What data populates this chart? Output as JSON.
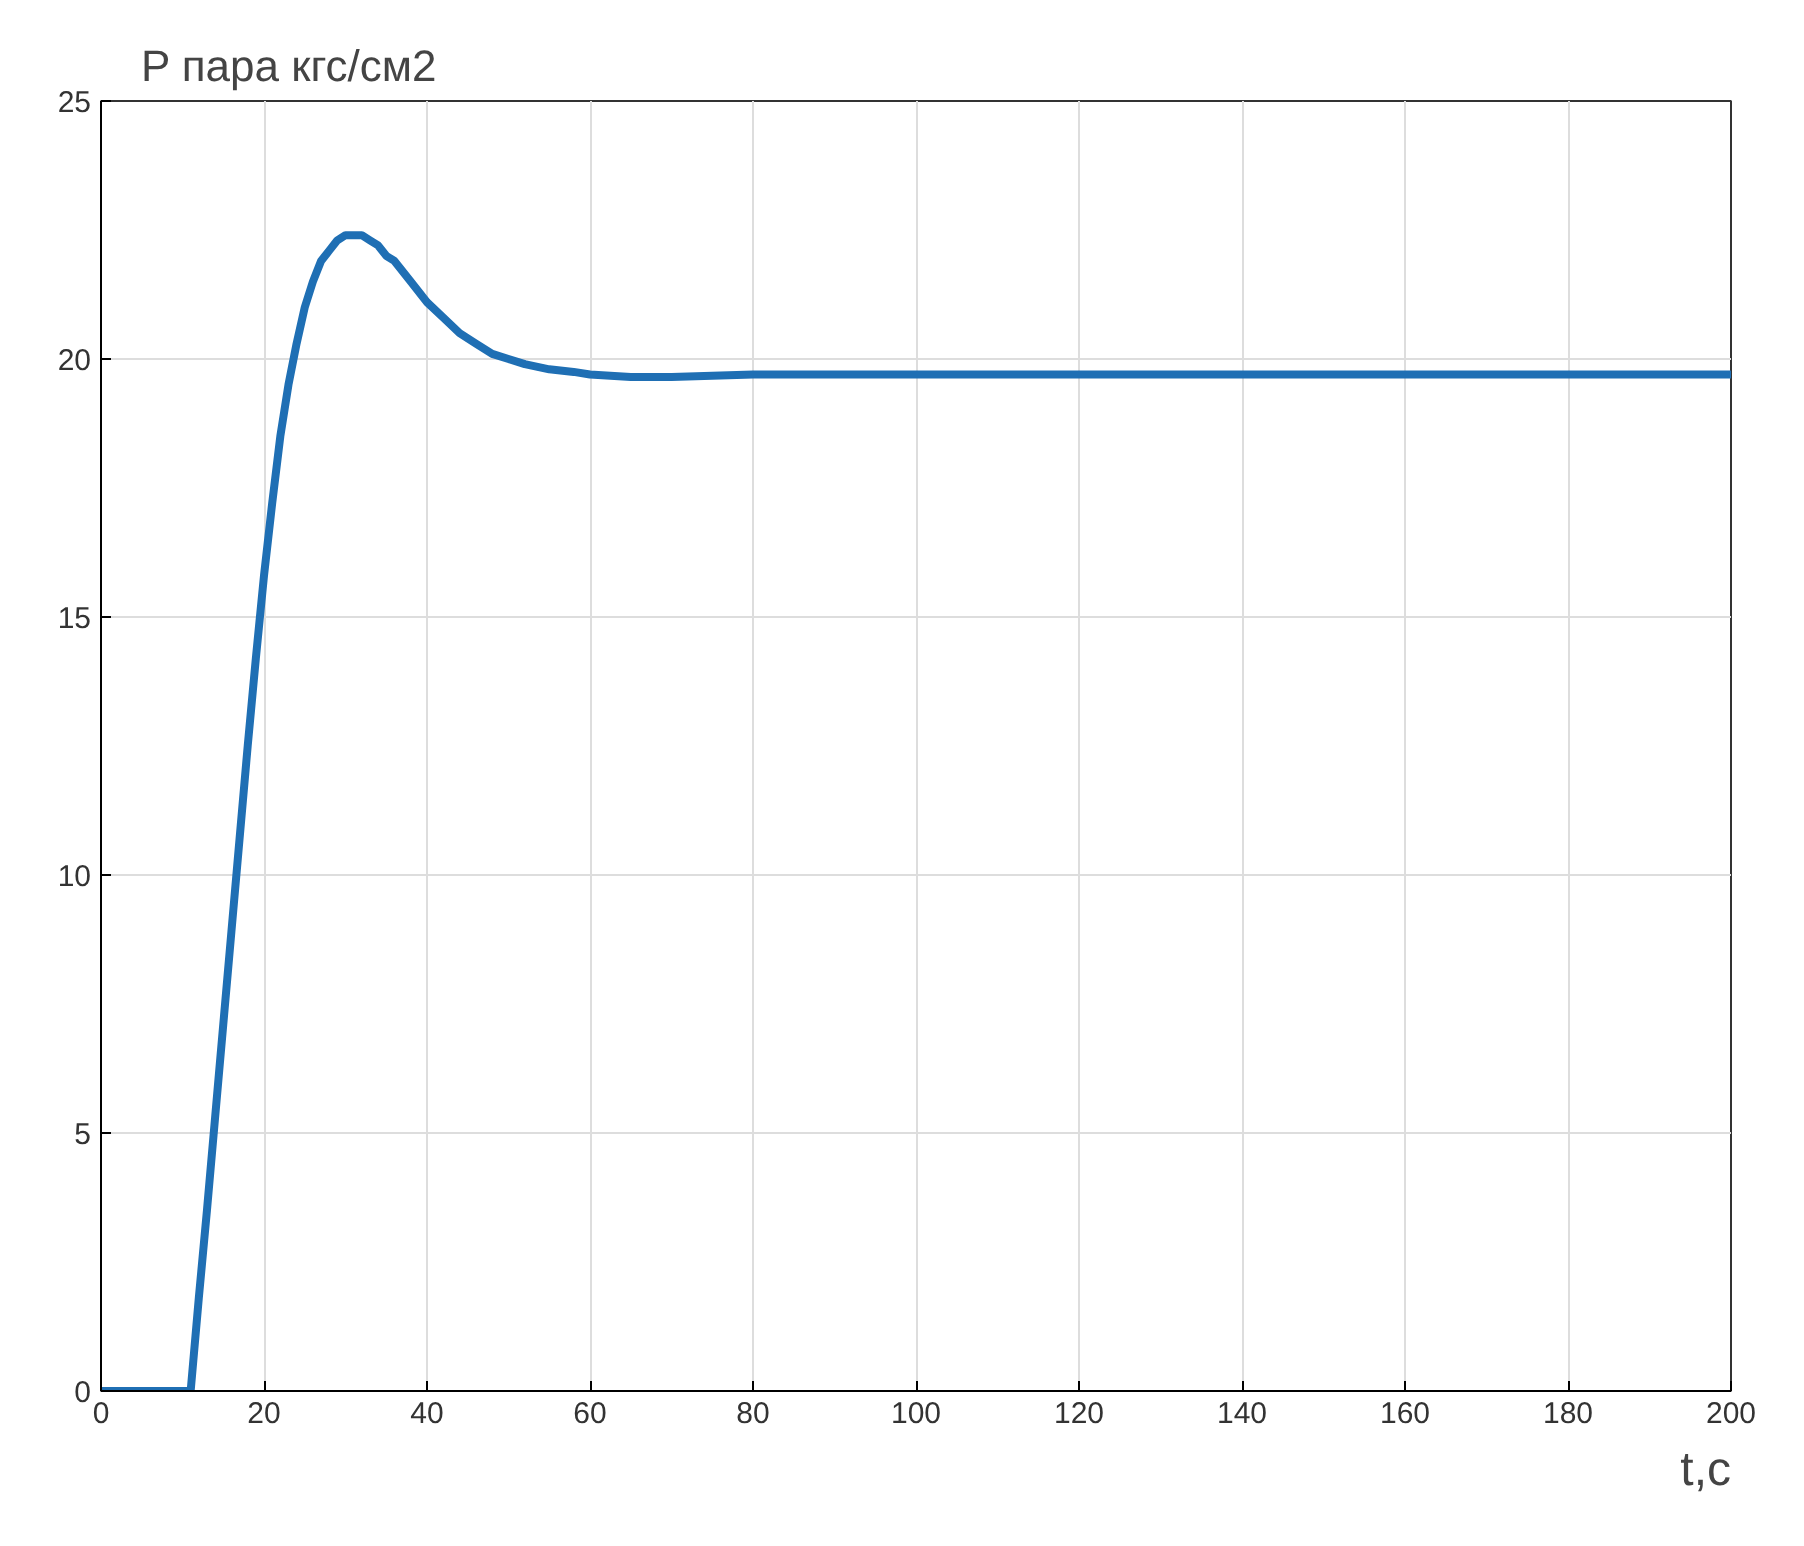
{
  "chart_data": {
    "type": "line",
    "title": "P пара кгс/см2",
    "xlabel": "t,c",
    "x": [
      0,
      5,
      10,
      11,
      12,
      13,
      14,
      15,
      16,
      17,
      18,
      19,
      20,
      21,
      22,
      23,
      24,
      25,
      26,
      27,
      28,
      29,
      30,
      31,
      32,
      33,
      34,
      35,
      36,
      38,
      40,
      42,
      44,
      46,
      48,
      50,
      52,
      55,
      58,
      60,
      65,
      70,
      80,
      100,
      120,
      150,
      200
    ],
    "series": [
      {
        "color": "#1f6fb4",
        "values": [
          0,
          0,
          0,
          0,
          1.8,
          3.5,
          5.3,
          7.1,
          8.9,
          10.7,
          12.5,
          14.2,
          15.8,
          17.2,
          18.5,
          19.5,
          20.3,
          21.0,
          21.5,
          21.9,
          22.1,
          22.3,
          22.4,
          22.4,
          22.4,
          22.3,
          22.2,
          22.0,
          21.9,
          21.5,
          21.1,
          20.8,
          20.5,
          20.3,
          20.1,
          20.0,
          19.9,
          19.8,
          19.75,
          19.7,
          19.65,
          19.65,
          19.7,
          19.7,
          19.7,
          19.7,
          19.7
        ]
      }
    ],
    "xlim": [
      0,
      200
    ],
    "ylim": [
      0,
      25
    ],
    "xticks": [
      0,
      20,
      40,
      60,
      80,
      100,
      120,
      140,
      160,
      180,
      200
    ],
    "yticks": [
      0,
      5,
      10,
      15,
      20,
      25
    ],
    "grid": true
  }
}
